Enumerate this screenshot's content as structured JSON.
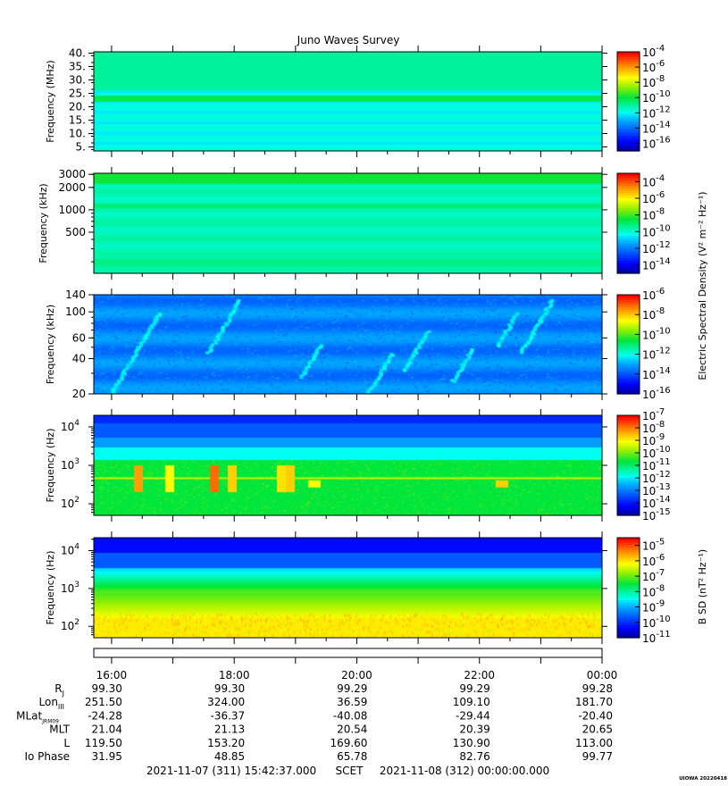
{
  "chart_data": {
    "type": "heatmap",
    "title": "Juno Waves Survey",
    "panels": [
      {
        "id": "hfr-high",
        "ylabel": "Frequency (MHz)",
        "scale": "linear",
        "ylim": [
          3.5,
          40.5
        ],
        "yticks": [
          {
            "v": 40,
            "label": "40."
          },
          {
            "v": 35,
            "label": "35."
          },
          {
            "v": 30,
            "label": "30."
          },
          {
            "v": 25,
            "label": "25."
          },
          {
            "v": 20,
            "label": "20."
          },
          {
            "v": 15,
            "label": "15."
          },
          {
            "v": 10,
            "label": "10."
          },
          {
            "v": 5,
            "label": "5."
          }
        ],
        "colorbar": {
          "range": [
            -17,
            -4
          ],
          "labels": [
            {
              "exp": "-4"
            },
            {
              "exp": "-6"
            },
            {
              "exp": "-8"
            },
            {
              "exp": "-10"
            },
            {
              "exp": "-12"
            },
            {
              "exp": "-14"
            },
            {
              "exp": "-16"
            }
          ]
        }
      },
      {
        "id": "hfr-low",
        "ylabel": "Frequency (kHz)",
        "scale": "log",
        "ylim": [
          140,
          3100
        ],
        "yticks": [
          {
            "v": 3000,
            "label": "3000"
          },
          {
            "v": 2000,
            "label": "2000"
          },
          {
            "v": 1000,
            "label": "1000"
          },
          {
            "v": 500,
            "label": "500"
          }
        ],
        "colorbar": {
          "range": [
            -15,
            -3
          ],
          "labels": [
            {
              "exp": "-4"
            },
            {
              "exp": "-6"
            },
            {
              "exp": "-8"
            },
            {
              "exp": "-10"
            },
            {
              "exp": "-12"
            },
            {
              "exp": "-14"
            }
          ]
        }
      },
      {
        "id": "lfr-high",
        "ylabel": "Frequency (kHz)",
        "scale": "log",
        "ylim": [
          20,
          140
        ],
        "yticks": [
          {
            "v": 140,
            "label": "140"
          },
          {
            "v": 100,
            "label": "100"
          },
          {
            "v": 60,
            "label": "60"
          },
          {
            "v": 40,
            "label": "40"
          },
          {
            "v": 20,
            "label": "20"
          }
        ],
        "colorbar": {
          "range": [
            -16,
            -6
          ],
          "labels": [
            {
              "exp": "-6"
            },
            {
              "exp": "-8"
            },
            {
              "exp": "-10"
            },
            {
              "exp": "-12"
            },
            {
              "exp": "-14"
            },
            {
              "exp": "-16"
            }
          ]
        }
      },
      {
        "id": "lfr-e",
        "ylabel": "Frequency (Hz)",
        "scale": "log",
        "ylim": [
          50,
          20000
        ],
        "yticks": [
          {
            "v": 10000,
            "label": "10",
            "exp": "4"
          },
          {
            "v": 1000,
            "label": "10",
            "exp": "3"
          },
          {
            "v": 100,
            "label": "10",
            "exp": "2"
          }
        ],
        "colorbar": {
          "range": [
            -15,
            -7
          ],
          "labels": [
            {
              "exp": "-7"
            },
            {
              "exp": "-8"
            },
            {
              "exp": "-9"
            },
            {
              "exp": "-10"
            },
            {
              "exp": "-11"
            },
            {
              "exp": "-12"
            },
            {
              "exp": "-13"
            },
            {
              "exp": "-14"
            },
            {
              "exp": "-15"
            }
          ]
        }
      },
      {
        "id": "lfr-b",
        "ylabel": "Frequency (Hz)",
        "scale": "log",
        "ylim": [
          50,
          22000
        ],
        "yticks": [
          {
            "v": 10000,
            "label": "10",
            "exp": "4"
          },
          {
            "v": 1000,
            "label": "10",
            "exp": "3"
          },
          {
            "v": 100,
            "label": "10",
            "exp": "2"
          }
        ],
        "colorbar": {
          "range": [
            -11,
            -4.5
          ],
          "labels": [
            {
              "exp": "-5"
            },
            {
              "exp": "-6"
            },
            {
              "exp": "-7"
            },
            {
              "exp": "-8"
            },
            {
              "exp": "-9"
            },
            {
              "exp": "-10"
            },
            {
              "exp": "-11"
            }
          ]
        }
      }
    ],
    "colorbar_title_e": "Electric Spectral Density (V² m⁻² Hz⁻¹)",
    "colorbar_title_b": "B SD (nT² Hz⁻¹)",
    "time_ticks": [
      "16:00",
      "18:00",
      "20:00",
      "22:00",
      "00:00"
    ],
    "xlim_hours": [
      15.71,
      24.0
    ],
    "ephemeris": [
      {
        "name": "R",
        "sub": "J",
        "values": [
          "99.30",
          "99.30",
          "99.29",
          "99.29",
          "99.28"
        ]
      },
      {
        "name": "Lon",
        "sub": "III",
        "values": [
          "251.50",
          "324.00",
          "36.59",
          "109.10",
          "181.70"
        ]
      },
      {
        "name": "MLat",
        "sub": "JRM09",
        "values": [
          "-24.28",
          "-36.37",
          "-40.08",
          "-29.44",
          "-20.40"
        ]
      },
      {
        "name": "MLT",
        "sub": "",
        "values": [
          "21.04",
          "21.13",
          "20.54",
          "20.39",
          "20.65"
        ]
      },
      {
        "name": "L",
        "sub": "",
        "values": [
          "119.50",
          "153.20",
          "169.60",
          "130.90",
          "113.00"
        ]
      },
      {
        "name": "Io Phase",
        "sub": "",
        "values": [
          "31.95",
          "48.85",
          "65.78",
          "82.76",
          "99.77"
        ]
      }
    ],
    "time_range": {
      "start": "2021-11-07 (311) 15:42:37.000",
      "label": "SCET",
      "end": "2021-11-08 (312) 00:00:00.000"
    },
    "credit": "UIOWA 20220418"
  }
}
